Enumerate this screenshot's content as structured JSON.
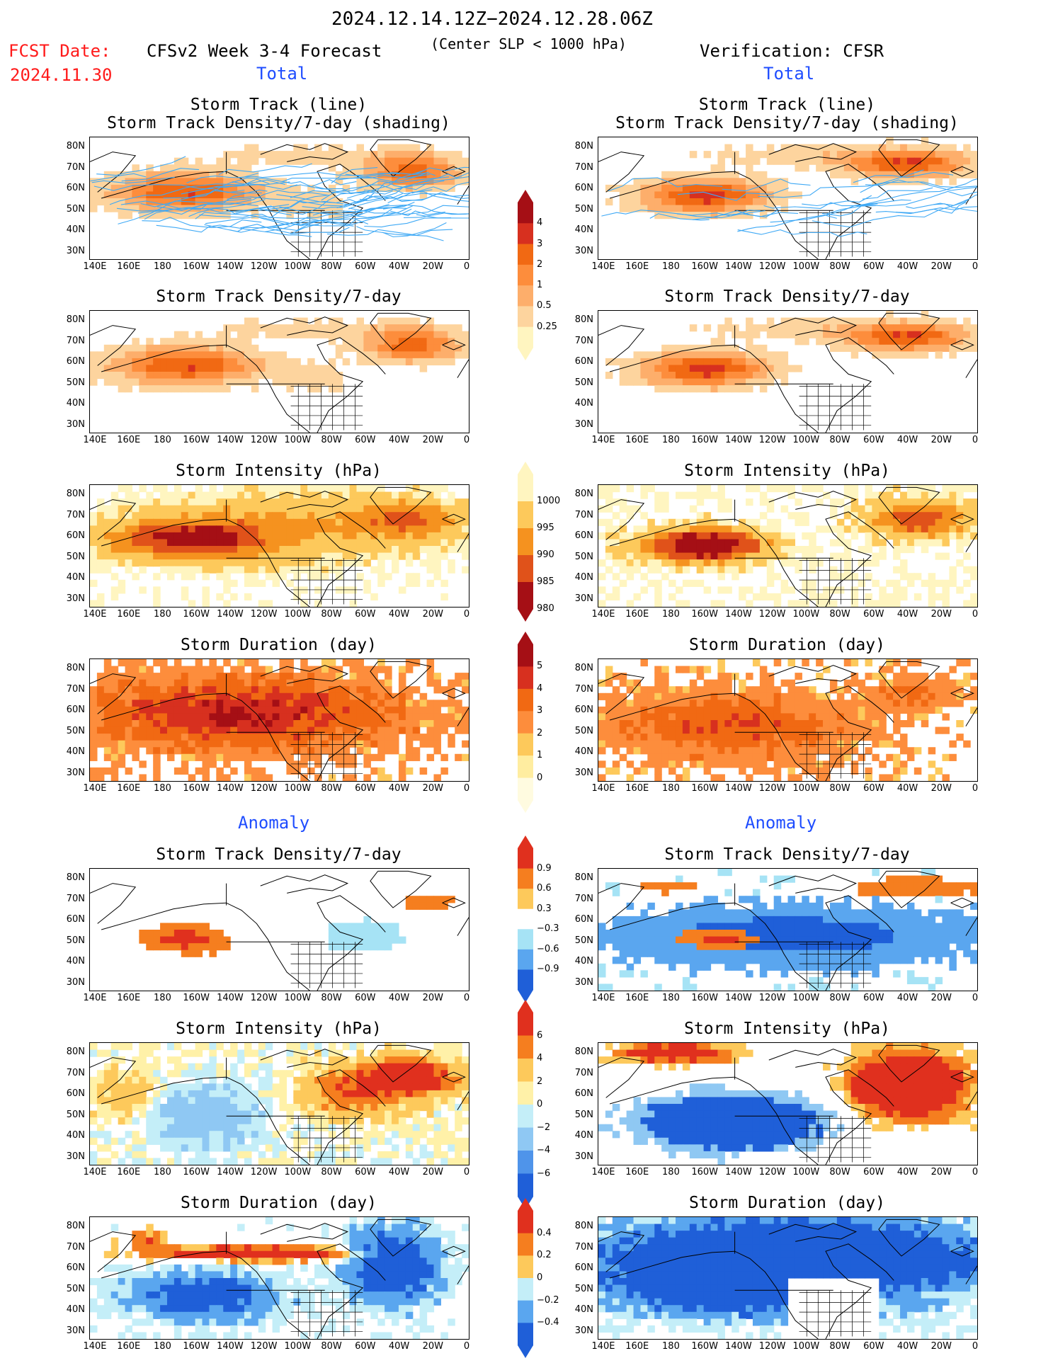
{
  "header": {
    "date_range": "2024.12.14.12Z−2024.12.28.06Z",
    "fcst_label": "FCST Date:",
    "fcst_date": "2024.11.30",
    "model_title": "CFSv2 Week 3-4 Forecast",
    "criterion": "(Center SLP < 1000 hPa)",
    "verification": "Verification: CFSR"
  },
  "sections": {
    "total_left": "Total",
    "total_right": "Total",
    "anomaly_left": "Anomaly",
    "anomaly_right": "Anomaly"
  },
  "panel_titles": {
    "track_line": "Storm Track (line)",
    "track_density_shading": "Storm Track Density/7-day (shading)",
    "density": "Storm Track Density/7-day",
    "intensity": "Storm Intensity (hPa)",
    "duration": "Storm Duration (day)"
  },
  "axes": {
    "y_ticks": [
      "80N",
      "70N",
      "60N",
      "50N",
      "40N",
      "30N"
    ],
    "x_ticks": [
      "140E",
      "160E",
      "180",
      "160W",
      "140W",
      "120W",
      "100W",
      "80W",
      "60W",
      "40W",
      "20W",
      "0"
    ]
  },
  "colorbars": {
    "density_total": {
      "labels": [
        "4",
        "3",
        "2",
        "1",
        "0.5",
        "0.25"
      ],
      "colors": [
        "#a50f15",
        "#d7301f",
        "#f16913",
        "#fd8d3c",
        "#fdae6b",
        "#fdd49e",
        "#fff5c0"
      ]
    },
    "intensity_total": {
      "labels": [
        "1000",
        "995",
        "990",
        "985",
        "980"
      ],
      "colors": [
        "#fff5c0",
        "#fdc95b",
        "#f5921f",
        "#e0521a",
        "#a50f15"
      ]
    },
    "duration_total": {
      "labels": [
        "5",
        "4",
        "3",
        "2",
        "1",
        "0"
      ],
      "colors": [
        "#a50f15",
        "#d7301f",
        "#f16913",
        "#fd8d3c",
        "#fdc95b",
        "#ffeda0",
        "#fffbe0"
      ]
    },
    "density_anom": {
      "labels": [
        "0.9",
        "0.6",
        "0.3",
        "−0.3",
        "−0.6",
        "−0.9"
      ],
      "colors": [
        "#e0301e",
        "#f57e1f",
        "#fdc95b",
        "#ffffff",
        "#a6e3f5",
        "#5aa6ef",
        "#1f5fd8"
      ]
    },
    "intensity_anom": {
      "labels": [
        "6",
        "4",
        "2",
        "0",
        "−2",
        "−4",
        "−6"
      ],
      "colors": [
        "#e0301e",
        "#f57e1f",
        "#fdc95b",
        "#fff1a8",
        "#c4eef8",
        "#8fc8f3",
        "#4f94ea",
        "#1f5fd8"
      ]
    },
    "duration_anom": {
      "labels": [
        "0.4",
        "0.2",
        "0",
        "−0.2",
        "−0.4"
      ],
      "colors": [
        "#e0301e",
        "#f57e1f",
        "#fdc95b",
        "#c4eef8",
        "#5aa6ef",
        "#1f5fd8"
      ]
    }
  },
  "chart_data": [
    {
      "type": "heatmap",
      "panel": "forecast-total-track-density-with-tracks",
      "field": "Storm Track Density/7-day",
      "colorbar": "density_total"
    },
    {
      "type": "heatmap",
      "panel": "verification-total-track-density-with-tracks",
      "field": "Storm Track Density/7-day",
      "colorbar": "density_total"
    },
    {
      "type": "heatmap",
      "panel": "forecast-total-track-density",
      "field": "Storm Track Density/7-day",
      "colorbar": "density_total"
    },
    {
      "type": "heatmap",
      "panel": "verification-total-track-density",
      "field": "Storm Track Density/7-day",
      "colorbar": "density_total"
    },
    {
      "type": "heatmap",
      "panel": "forecast-total-intensity",
      "field": "Storm Intensity (hPa)",
      "colorbar": "intensity_total"
    },
    {
      "type": "heatmap",
      "panel": "verification-total-intensity",
      "field": "Storm Intensity (hPa)",
      "colorbar": "intensity_total"
    },
    {
      "type": "heatmap",
      "panel": "forecast-total-duration",
      "field": "Storm Duration (day)",
      "colorbar": "duration_total"
    },
    {
      "type": "heatmap",
      "panel": "verification-total-duration",
      "field": "Storm Duration (day)",
      "colorbar": "duration_total"
    },
    {
      "type": "heatmap",
      "panel": "forecast-anomaly-track-density",
      "field": "Storm Track Density/7-day",
      "colorbar": "density_anom"
    },
    {
      "type": "heatmap",
      "panel": "verification-anomaly-track-density",
      "field": "Storm Track Density/7-day",
      "colorbar": "density_anom"
    },
    {
      "type": "heatmap",
      "panel": "forecast-anomaly-intensity",
      "field": "Storm Intensity (hPa)",
      "colorbar": "intensity_anom"
    },
    {
      "type": "heatmap",
      "panel": "verification-anomaly-intensity",
      "field": "Storm Intensity (hPa)",
      "colorbar": "intensity_anom"
    },
    {
      "type": "heatmap",
      "panel": "forecast-anomaly-duration",
      "field": "Storm Duration (day)",
      "colorbar": "duration_anom"
    },
    {
      "type": "heatmap",
      "panel": "verification-anomaly-duration",
      "field": "Storm Duration (day)",
      "colorbar": "duration_anom"
    }
  ]
}
